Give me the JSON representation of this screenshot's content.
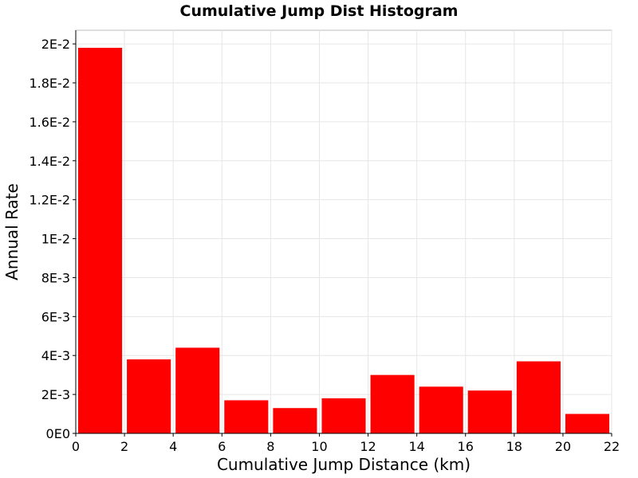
{
  "chart_data": {
    "type": "bar",
    "title": "Cumulative Jump Dist Histogram",
    "xlabel": "Cumulative Jump Distance (km)",
    "ylabel": "Annual Rate",
    "xlim": [
      0,
      22
    ],
    "ylim": [
      0,
      0.0207
    ],
    "grid": true,
    "legend": "none",
    "bar_color": "#ff0000",
    "bins": [
      {
        "x0": 0,
        "x1": 2,
        "value": 0.0198
      },
      {
        "x0": 2,
        "x1": 4,
        "value": 0.0038
      },
      {
        "x0": 4,
        "x1": 6,
        "value": 0.0044
      },
      {
        "x0": 6,
        "x1": 8,
        "value": 0.0017
      },
      {
        "x0": 8,
        "x1": 10,
        "value": 0.0013
      },
      {
        "x0": 10,
        "x1": 12,
        "value": 0.0018
      },
      {
        "x0": 12,
        "x1": 14,
        "value": 0.003
      },
      {
        "x0": 14,
        "x1": 16,
        "value": 0.0024
      },
      {
        "x0": 16,
        "x1": 18,
        "value": 0.0022
      },
      {
        "x0": 18,
        "x1": 20,
        "value": 0.0037
      },
      {
        "x0": 20,
        "x1": 22,
        "value": 0.001
      }
    ],
    "x_ticks": [
      {
        "value": 0,
        "label": "0"
      },
      {
        "value": 2,
        "label": "2"
      },
      {
        "value": 4,
        "label": "4"
      },
      {
        "value": 6,
        "label": "6"
      },
      {
        "value": 8,
        "label": "8"
      },
      {
        "value": 10,
        "label": "10"
      },
      {
        "value": 12,
        "label": "12"
      },
      {
        "value": 14,
        "label": "14"
      },
      {
        "value": 16,
        "label": "16"
      },
      {
        "value": 18,
        "label": "18"
      },
      {
        "value": 20,
        "label": "20"
      },
      {
        "value": 22,
        "label": "22"
      }
    ],
    "y_ticks": [
      {
        "value": 0,
        "label": "0E0"
      },
      {
        "value": 0.002,
        "label": "2E-3"
      },
      {
        "value": 0.004,
        "label": "4E-3"
      },
      {
        "value": 0.006,
        "label": "6E-3"
      },
      {
        "value": 0.008,
        "label": "8E-3"
      },
      {
        "value": 0.01,
        "label": "1E-2"
      },
      {
        "value": 0.012,
        "label": "1.2E-2"
      },
      {
        "value": 0.014,
        "label": "1.4E-2"
      },
      {
        "value": 0.016,
        "label": "1.6E-2"
      },
      {
        "value": 0.018,
        "label": "1.8E-2"
      },
      {
        "value": 0.02,
        "label": "2E-2"
      }
    ]
  }
}
